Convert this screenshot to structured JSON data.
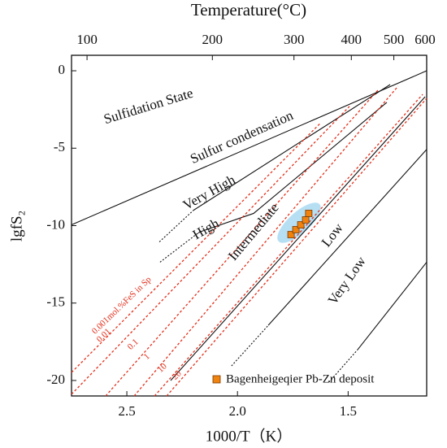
{
  "chart_data": {
    "type": "line",
    "top_axis_label": "Temperature(°C)",
    "x_label": "1000/T（K）",
    "y_label": "lgfS₂",
    "xlim": [
      2.75,
      1.145
    ],
    "ylim": [
      -21,
      1
    ],
    "xticks": [
      2.5,
      {
        "value": 2,
        "label": "2.0"
      },
      1.5
    ],
    "yticks": [
      0,
      -5,
      -10,
      -15,
      -20
    ],
    "x2ticks": [
      100,
      200,
      300,
      400,
      500,
      600
    ],
    "boundaries": [
      {
        "style": "solid",
        "x": [
          2.75,
          1.145
        ],
        "y": [
          -9.95,
          0
        ]
      },
      {
        "style": "dotted",
        "x": [
          2.353,
          2.199
        ],
        "y": [
          -11.05,
          -9.01
        ]
      },
      {
        "style": "solid",
        "x": [
          2.199,
          1.31
        ],
        "y": [
          -9.01,
          -0.89
        ]
      },
      {
        "style": "dotted",
        "x": [
          2.35,
          2.173
        ],
        "y": [
          -12.36,
          -10.42
        ]
      },
      {
        "style": "solid",
        "x": [
          2.173,
          1.927,
          1.325
        ],
        "y": [
          -10.42,
          -9.21,
          -2.04
        ]
      },
      {
        "style": "solid",
        "x": [
          2.302,
          1.152
        ],
        "y": [
          -20.0,
          -1.68
        ]
      },
      {
        "style": "dotted",
        "x": [
          2.027,
          1.861
        ],
        "y": [
          -19.06,
          -16.44
        ]
      },
      {
        "style": "solid",
        "x": [
          1.861,
          1.145
        ],
        "y": [
          -16.44,
          -5.08
        ]
      },
      {
        "style": "dotted",
        "x": [
          1.586,
          1.457
        ],
        "y": [
          -20.1,
          -18.01
        ]
      },
      {
        "style": "solid",
        "x": [
          1.457,
          1.145
        ],
        "y": [
          -18.01,
          -12.36
        ]
      }
    ],
    "contours": [
      {
        "label": "0.001mol.%FeS in Sp",
        "x": [
          2.75,
          1.623
        ],
        "y": [
          -19.48,
          -3.35
        ]
      },
      {
        "label": "0.01",
        "x": [
          2.75,
          1.494
        ],
        "y": [
          -20.89,
          -2.3
        ]
      },
      {
        "label": "0.1",
        "x": [
          2.596,
          1.366
        ],
        "y": [
          -21,
          -1.26
        ]
      },
      {
        "label": "1",
        "x": [
          2.467,
          1.274
        ],
        "y": [
          -21,
          -0.99
        ]
      },
      {
        "label": "10",
        "x": [
          2.375,
          1.163
        ],
        "y": [
          -21,
          -1.52
        ]
      },
      {
        "label": "20",
        "x": [
          2.32,
          1.145
        ],
        "y": [
          -21,
          -1.78
        ]
      }
    ],
    "regions": [
      "Sulfidation State",
      "Sulfur condensation",
      "Very High",
      "High",
      "Intermediate",
      "Low",
      "Very Low"
    ],
    "series": [
      {
        "name": "Bagenheigeqier Pb-Zn deposit",
        "color": "#f0820f",
        "x": [
          1.758,
          1.736,
          1.714,
          1.692,
          1.678
        ],
        "values": [
          -10.58,
          -10.26,
          -9.95,
          -9.63,
          -9.21
        ]
      }
    ],
    "legend": "lower right"
  }
}
